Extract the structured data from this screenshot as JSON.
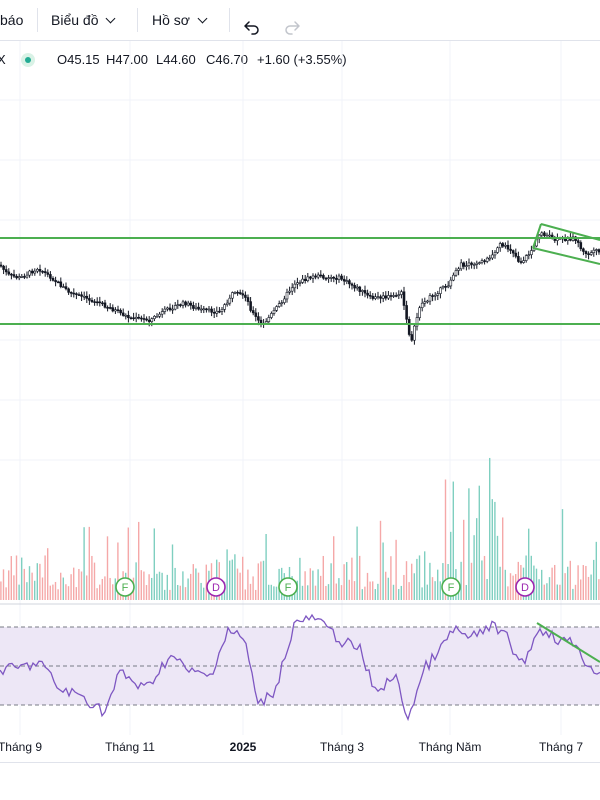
{
  "toolbar": {
    "alerts_label": "báo",
    "chart_menu_label": "Biểu đồ",
    "profile_menu_label": "Hồ sơ",
    "undo_icon": "undo-icon",
    "redo_icon": "redo-icon"
  },
  "legend": {
    "close_marker": "X",
    "open": "O45.15",
    "high": "H47.00",
    "low": "L44.60",
    "close": "C46.70",
    "change": "+1.60 (+3.55%)",
    "status_color": "#22ab94"
  },
  "events": [
    {
      "letter": "F",
      "kind": "financials",
      "color": "#4caf50"
    },
    {
      "letter": "D",
      "kind": "dividend",
      "color": "#9c27b0"
    },
    {
      "letter": "F",
      "kind": "financials",
      "color": "#4caf50"
    },
    {
      "letter": "F",
      "kind": "financials",
      "color": "#4caf50"
    },
    {
      "letter": "D",
      "kind": "dividend",
      "color": "#9c27b0"
    }
  ],
  "x_axis": {
    "labels": [
      "Tháng 9",
      "Tháng 11",
      "2025",
      "Tháng 3",
      "Tháng Năm",
      "Tháng 7"
    ]
  },
  "colors": {
    "up_volume": "#7fcfc0",
    "down_volume": "#f5a8a8",
    "trendline": "#4caf50",
    "rsi_line": "#7e57c2",
    "rsi_band": "#ede7f6"
  }
}
